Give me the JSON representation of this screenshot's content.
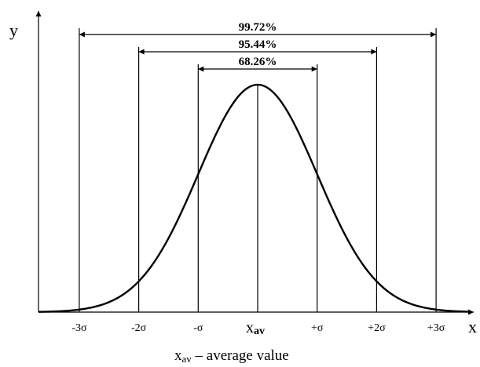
{
  "axes": {
    "y_label": "y",
    "x_label": "x"
  },
  "intervals": [
    {
      "label": "99.72%",
      "k": 3
    },
    {
      "label": "95.44%",
      "k": 2
    },
    {
      "label": "68.26%",
      "k": 1
    }
  ],
  "ticks": [
    {
      "label": "-3σ",
      "k": -3
    },
    {
      "label": "-2σ",
      "k": -2
    },
    {
      "label": "-σ",
      "k": -1
    },
    {
      "label": "+σ",
      "k": 1
    },
    {
      "label": "+2σ",
      "k": 2
    },
    {
      "label": "+3σ",
      "k": 3
    }
  ],
  "center_label": {
    "main": "x",
    "sub": "av"
  },
  "caption": {
    "main": "x",
    "sub": "av",
    "rest": " – average value"
  }
}
